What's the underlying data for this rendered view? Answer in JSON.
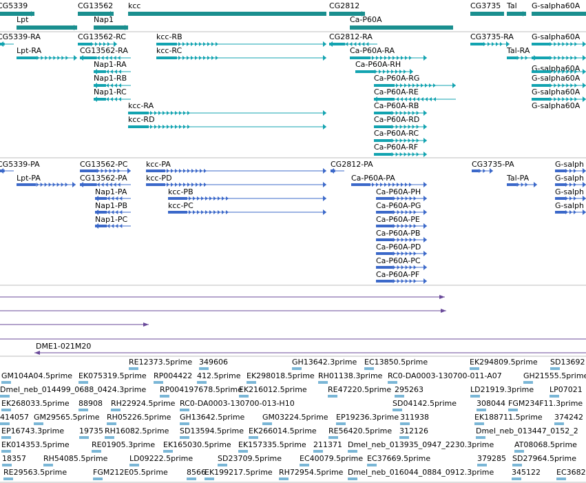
{
  "colors": {
    "gene": "#1a8f8f",
    "transcript": "#12a3b0",
    "protein": "#3b68c9",
    "clone": "#6a4a9a",
    "est": "#7ab6d6",
    "divider": "#bdbdbd"
  },
  "genes": [
    {
      "label": "CG5339"
    },
    {
      "label": "CG13562"
    },
    {
      "label": "kcc"
    },
    {
      "label": "CG2812"
    },
    {
      "label": "CG3735"
    },
    {
      "label": "Tal"
    },
    {
      "label": "G-salpha60A"
    },
    {
      "label": "Lpt"
    },
    {
      "label": "Nap1"
    },
    {
      "label": "Ca-P60A"
    }
  ],
  "transcripts": [
    {
      "label": "CG5339-RA"
    },
    {
      "label": "CG13562-RC"
    },
    {
      "label": "kcc-RB"
    },
    {
      "label": "CG2812-RA"
    },
    {
      "label": "CG3735-RA"
    },
    {
      "label": "G-salpha60A"
    },
    {
      "label": "Lpt-RA"
    },
    {
      "label": "CG13562-RA"
    },
    {
      "label": "kcc-RC"
    },
    {
      "label": "Ca-P60A-RA"
    },
    {
      "label": "Tal-RA"
    },
    {
      "label": "G-salpha60A"
    },
    {
      "label": "Nap1-RA"
    },
    {
      "label": "Ca-P60A-RH"
    },
    {
      "label": "G-salpha60A"
    },
    {
      "label": "Nap1-RB"
    },
    {
      "label": "Ca-P60A-RG"
    },
    {
      "label": "G-salpha60A"
    },
    {
      "label": "Nap1-RC"
    },
    {
      "label": "Ca-P60A-RE"
    },
    {
      "label": "G-salpha60A"
    },
    {
      "label": "kcc-RA"
    },
    {
      "label": "Ca-P60A-RB"
    },
    {
      "label": "kcc-RD"
    },
    {
      "label": "Ca-P60A-RD"
    },
    {
      "label": "Ca-P60A-RC"
    },
    {
      "label": "Ca-P60A-RF"
    }
  ],
  "proteins": [
    {
      "label": "CG5339-PA"
    },
    {
      "label": "CG13562-PC"
    },
    {
      "label": "kcc-PA"
    },
    {
      "label": "CG2812-PA"
    },
    {
      "label": "CG3735-PA"
    },
    {
      "label": "G-salph"
    },
    {
      "label": "Lpt-PA"
    },
    {
      "label": "CG13562-PA"
    },
    {
      "label": "kcc-PD"
    },
    {
      "label": "Ca-P60A-PA"
    },
    {
      "label": "Tal-PA"
    },
    {
      "label": "G-salph"
    },
    {
      "label": "Nap1-PA"
    },
    {
      "label": "kcc-PB"
    },
    {
      "label": "Ca-P60A-PH"
    },
    {
      "label": "G-salph"
    },
    {
      "label": "Nap1-PB"
    },
    {
      "label": "kcc-PC"
    },
    {
      "label": "Ca-P60A-PG"
    },
    {
      "label": "G-salph"
    },
    {
      "label": "Nap1-PC"
    },
    {
      "label": "Ca-P60A-PE"
    },
    {
      "label": "Ca-P60A-PB"
    },
    {
      "label": "Ca-P60A-PD"
    },
    {
      "label": "Ca-P60A-PC"
    },
    {
      "label": "Ca-P60A-PF"
    }
  ],
  "clone": {
    "label": "DME1-021M20"
  },
  "ests": [
    {
      "label": "RE12373.5prime"
    },
    {
      "label": "349606"
    },
    {
      "label": "GH13642.3prime"
    },
    {
      "label": "EC13850.5prime"
    },
    {
      "label": "EK294809.5prime"
    },
    {
      "label": "SD13692"
    },
    {
      "label": "GM104A04.5prime"
    },
    {
      "label": "EK075319.5prime"
    },
    {
      "label": "RP004422"
    },
    {
      "label": "412.5prime"
    },
    {
      "label": "EK298018.5prime"
    },
    {
      "label": "RH01138.3prime"
    },
    {
      "label": "RC0-DA0003-130700-011-A07"
    },
    {
      "label": "GH21555.5prime"
    },
    {
      "label": "Dmel_neb_014499_0688_0424.3prime"
    },
    {
      "label": "RP004197678.5prime"
    },
    {
      "label": "EK216012.5prime"
    },
    {
      "label": "RE47220.5prime"
    },
    {
      "label": "295263"
    },
    {
      "label": "LD21919.3prime"
    },
    {
      "label": "LP07021"
    },
    {
      "label": "EK268033.5prime"
    },
    {
      "label": "88908"
    },
    {
      "label": "RH22924.5prime"
    },
    {
      "label": "RC0-DA0003-130700-013-H10"
    },
    {
      "label": "SD04142.5prime"
    },
    {
      "label": "308044"
    },
    {
      "label": "FGM234F11.3prime"
    },
    {
      "label": "414057"
    },
    {
      "label": "GM29565.5prime"
    },
    {
      "label": "RH05226.5prime"
    },
    {
      "label": "GH13642.5prime"
    },
    {
      "label": "GM03224.5prime"
    },
    {
      "label": "EP19236.3prime"
    },
    {
      "label": "311938"
    },
    {
      "label": "EK188711.5prime"
    },
    {
      "label": "374242"
    },
    {
      "label": "EP16743.3prime"
    },
    {
      "label": "19735"
    },
    {
      "label": "RH16082.5prime"
    },
    {
      "label": "SD13594.5prime"
    },
    {
      "label": "EK266014.5prime"
    },
    {
      "label": "RE56420.5prime"
    },
    {
      "label": "312126"
    },
    {
      "label": "Dmel_neb_013447_0152_2"
    },
    {
      "label": "EK014353.5prime"
    },
    {
      "label": "RE01905.3prime"
    },
    {
      "label": "EK165030.5prime"
    },
    {
      "label": "EK157335.5prime"
    },
    {
      "label": "211371"
    },
    {
      "label": "Dmel_neb_013935_0947_2230.3prime"
    },
    {
      "label": "AT08068.5prime"
    },
    {
      "label": "18357"
    },
    {
      "label": "RH54085.5prime"
    },
    {
      "label": "LD09222.5prime"
    },
    {
      "label": "SD23709.5prime"
    },
    {
      "label": "EC40079.5prime"
    },
    {
      "label": "EC37669.5prime"
    },
    {
      "label": "379285"
    },
    {
      "label": "SD27964.5prime"
    },
    {
      "label": "RE29563.5prime"
    },
    {
      "label": "FGM212E05.5prime"
    },
    {
      "label": "8566"
    },
    {
      "label": "EK199217.5prime"
    },
    {
      "label": "RH72954.5prime"
    },
    {
      "label": "Dmel_neb_016044_0884_0912.3prime"
    },
    {
      "label": "345122"
    },
    {
      "label": "EC3682"
    }
  ]
}
